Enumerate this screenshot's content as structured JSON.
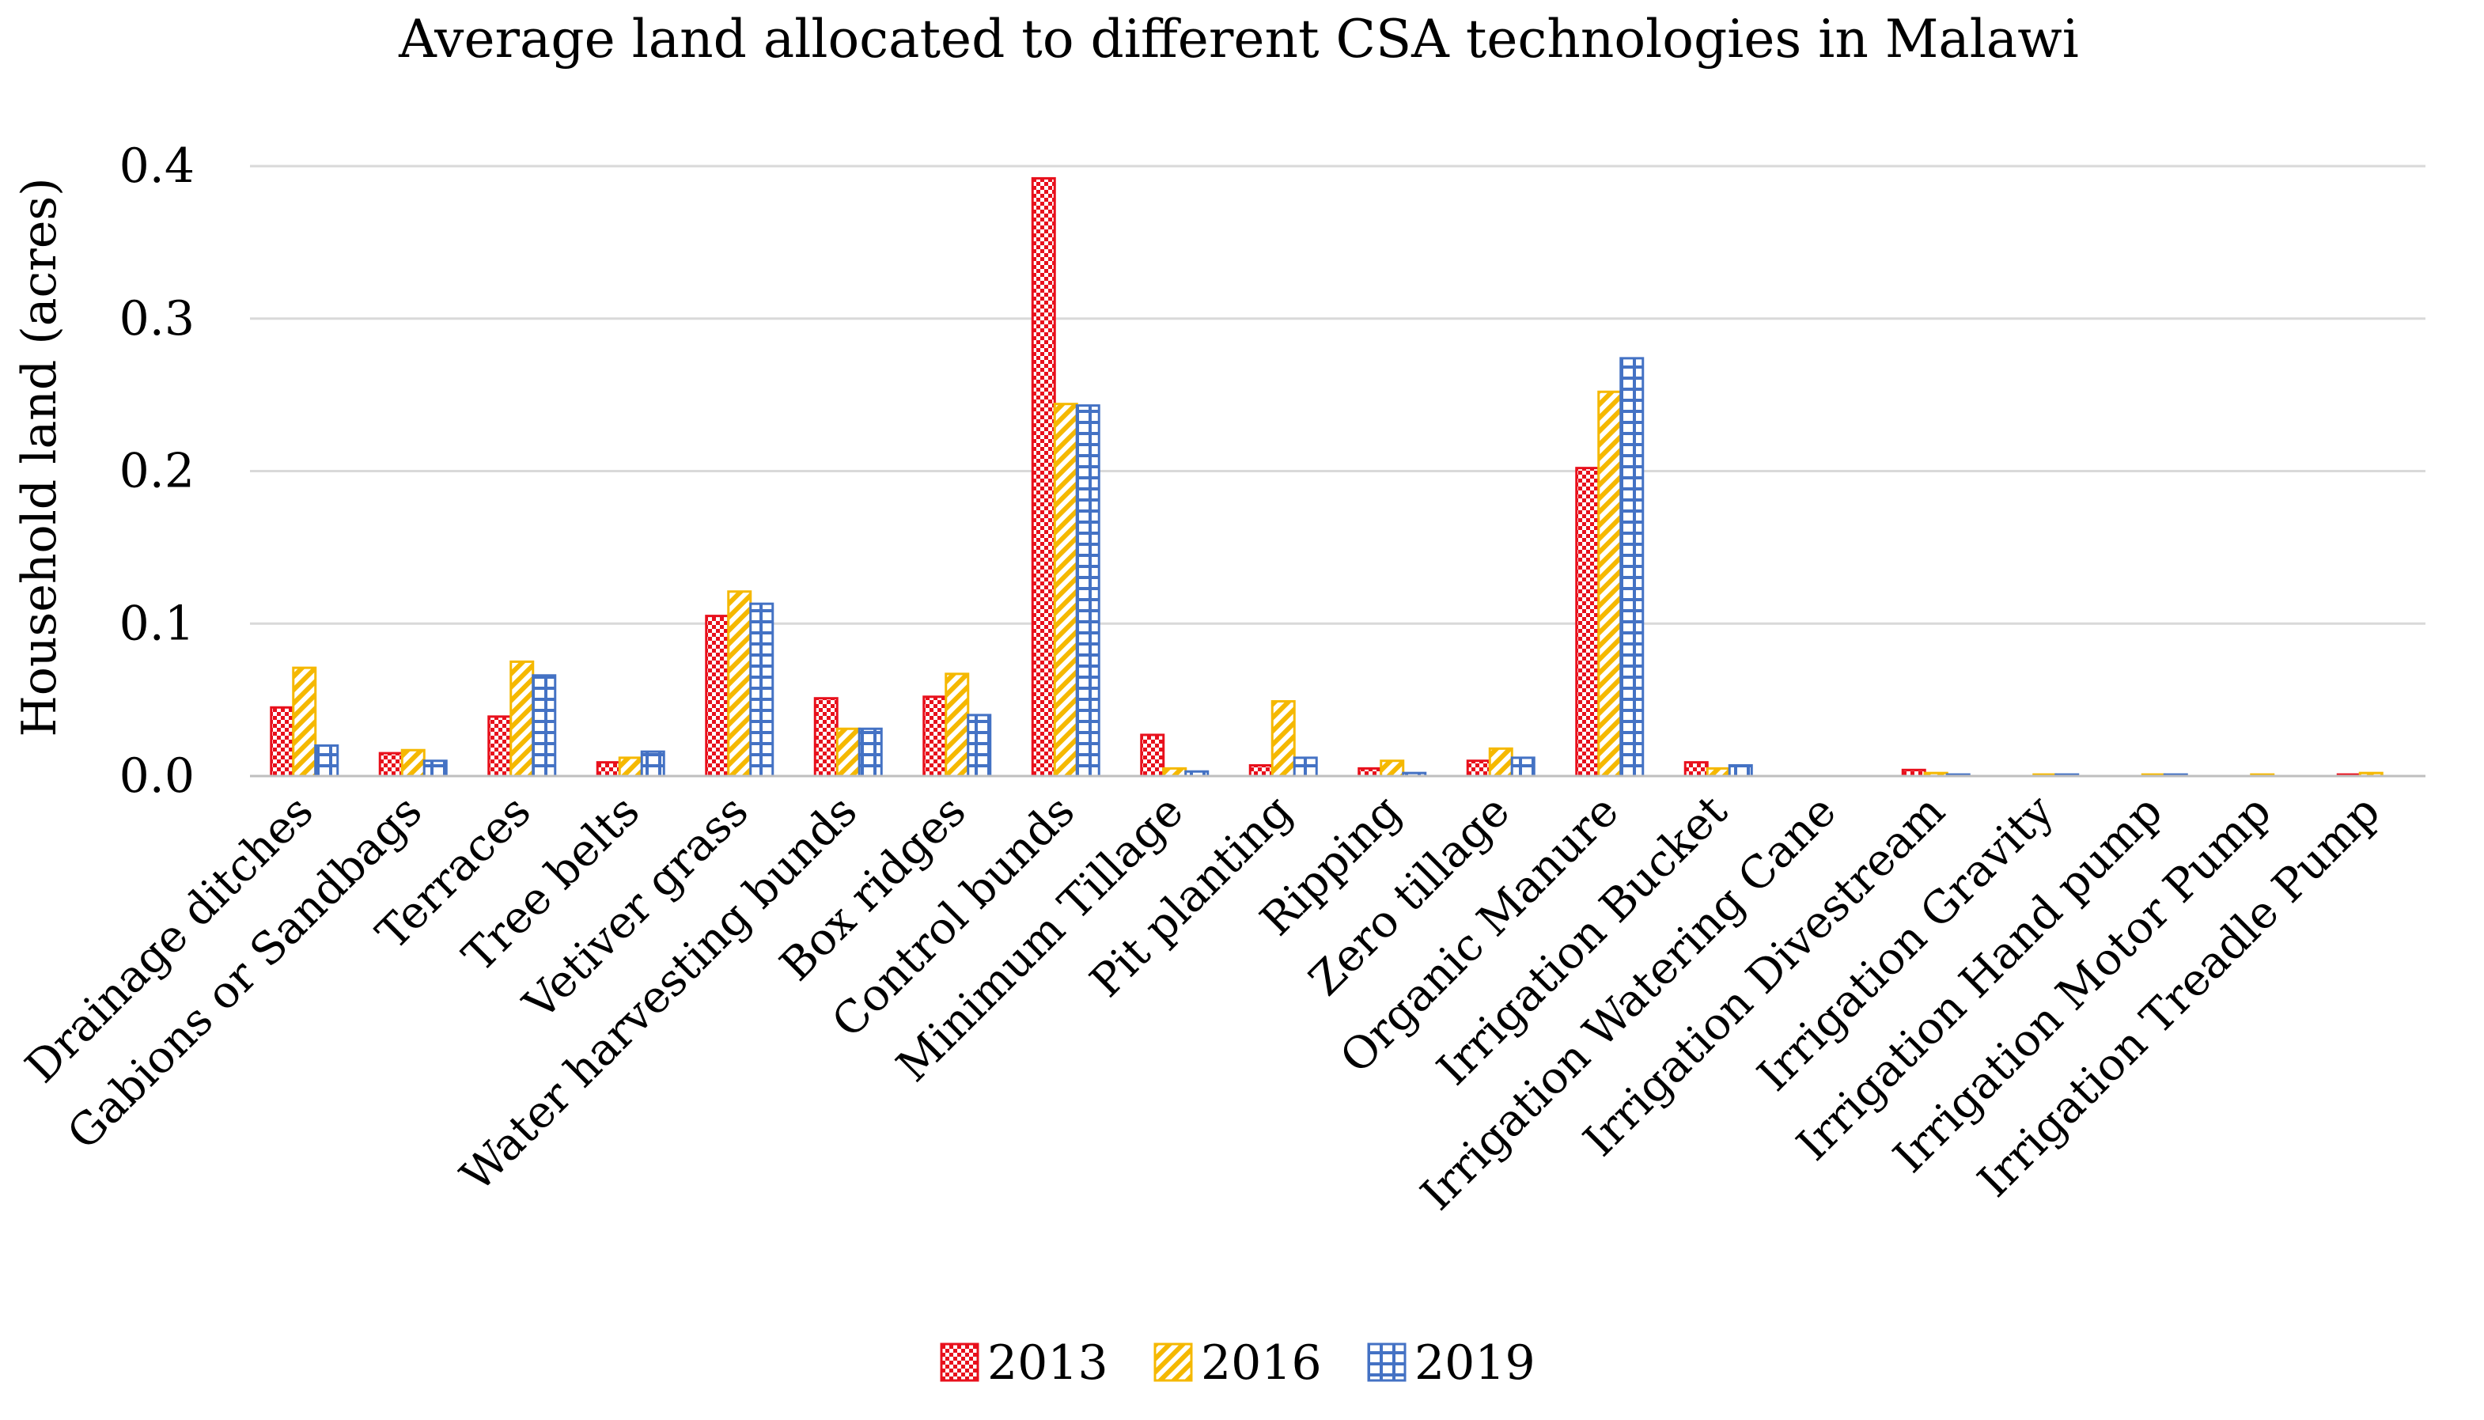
{
  "chart_data": {
    "type": "bar",
    "title": "Average land allocated to different CSA technologies in Malawi",
    "xlabel": "",
    "ylabel": "Household land (acres)",
    "ylim": [
      0,
      0.4
    ],
    "yticks": [
      "0.0",
      "0.1",
      "0.2",
      "0.3",
      "0.4"
    ],
    "grid": true,
    "legend_position": "bottom",
    "categories": [
      "Drainage ditches",
      "Gabions or Sandbags",
      "Terraces",
      "Tree belts",
      "Vetiver grass",
      "Water harvesting bunds",
      "Box ridges",
      "Control bunds",
      "Minimum Tillage",
      "Pit planting",
      "Ripping",
      "Zero tillage",
      "Organic Manure",
      "Irrigation Bucket",
      "Irrigation Watering Cane",
      "Irrigation Divestream",
      "Irrigation Gravity",
      "Irrigation Hand pump",
      "Irrigation Motor Pump",
      "Irrigation Treadle Pump"
    ],
    "series": [
      {
        "name": "2013",
        "color": "#e8101c",
        "values": [
          0.045,
          0.015,
          0.039,
          0.009,
          0.105,
          0.051,
          0.052,
          0.392,
          0.027,
          0.007,
          0.005,
          0.01,
          0.202,
          0.009,
          0.0,
          0.004,
          0.0,
          0.0,
          0.0,
          0.001
        ]
      },
      {
        "name": "2016",
        "color": "#f5b800",
        "values": [
          0.071,
          0.017,
          0.075,
          0.012,
          0.121,
          0.031,
          0.067,
          0.244,
          0.005,
          0.049,
          0.01,
          0.018,
          0.252,
          0.005,
          0.0,
          0.002,
          0.001,
          0.001,
          0.001,
          0.002
        ]
      },
      {
        "name": "2019",
        "color": "#4472c4",
        "values": [
          0.02,
          0.01,
          0.066,
          0.016,
          0.113,
          0.031,
          0.04,
          0.243,
          0.003,
          0.012,
          0.002,
          0.012,
          0.274,
          0.007,
          0.0,
          0.001,
          0.001,
          0.001,
          0.0,
          0.0
        ]
      }
    ]
  }
}
